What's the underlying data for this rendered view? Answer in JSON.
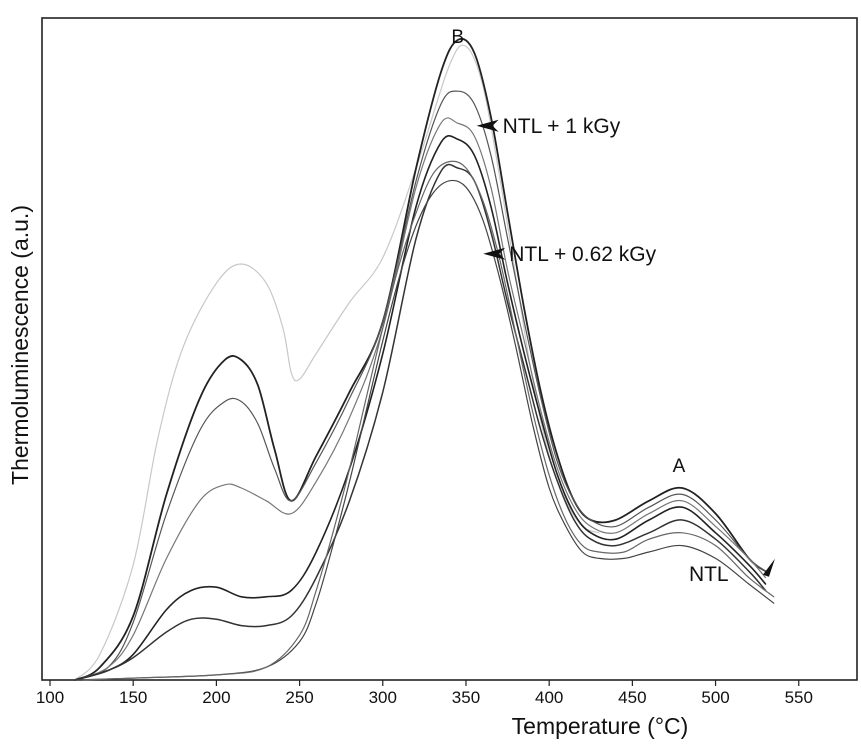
{
  "chart_data": {
    "type": "line",
    "title": "",
    "xlabel": "Temperature  (°C)",
    "ylabel": "Thermoluminescence (a.u.)",
    "xlim": [
      100,
      585
    ],
    "ylim": [
      0,
      100
    ],
    "xticks": [
      100,
      150,
      200,
      250,
      300,
      350,
      400,
      450,
      500,
      550
    ],
    "grid": false,
    "legend": "none",
    "annotations": [
      {
        "text": "B",
        "x": 345,
        "y": 99.5,
        "kind": "peak-label"
      },
      {
        "text": "A",
        "x": 478,
        "y": 32.5,
        "kind": "peak-label"
      },
      {
        "text": "NTL + 1 kGy",
        "x": 372,
        "y": 85.5,
        "arrow_to": [
          369,
          87
        ]
      },
      {
        "text": "NTL + 0.62 kGy",
        "x": 376,
        "y": 65.5,
        "arrow_to": [
          371,
          66.5
        ]
      },
      {
        "text": "NTL",
        "x": 484,
        "y": 15.5,
        "arrow_to": [
          482,
          17.5
        ]
      }
    ],
    "series": [
      {
        "stroke": "#c8c8c8",
        "width": 1.2,
        "x": [
          115,
          130,
          150,
          165,
          180,
          200,
          215,
          230,
          240,
          245,
          250,
          260,
          280,
          300,
          320,
          340,
          350,
          360,
          370,
          380,
          390,
          400,
          410,
          420,
          430
        ],
        "y": [
          0,
          4,
          18,
          38,
          52,
          62,
          65,
          62,
          55,
          48,
          47,
          51,
          59,
          66,
          80,
          96,
          99,
          93,
          79,
          63,
          47,
          35,
          28,
          24,
          23
        ]
      },
      {
        "stroke": "#222222",
        "width": 1.8,
        "x": [
          115,
          130,
          150,
          170,
          190,
          205,
          215,
          225,
          235,
          245,
          260,
          280,
          300,
          320,
          335,
          345,
          355,
          365,
          375,
          385,
          395,
          405,
          415,
          425,
          440,
          460,
          480,
          500,
          520,
          530
        ],
        "y": [
          0,
          2,
          10,
          29,
          44,
          50,
          50,
          46,
          36,
          28,
          35,
          45,
          56,
          80,
          95,
          100,
          98,
          88,
          73,
          58,
          45,
          35,
          28,
          25,
          25,
          28,
          30,
          26,
          19,
          17
        ]
      },
      {
        "stroke": "#555555",
        "width": 1.2,
        "x": [
          115,
          135,
          150,
          170,
          190,
          205,
          215,
          225,
          235,
          245,
          260,
          280,
          300,
          320,
          335,
          345,
          355,
          365,
          375,
          385,
          395,
          405,
          415,
          425,
          440,
          460,
          480,
          500,
          520,
          530
        ],
        "y": [
          0,
          2,
          9,
          26,
          39,
          43.5,
          43.5,
          40,
          33,
          28,
          34,
          44,
          56,
          78,
          90,
          92,
          90,
          82,
          69,
          56,
          44,
          34,
          28,
          25,
          24,
          27,
          29,
          25,
          19,
          17
        ]
      },
      {
        "stroke": "#777777",
        "width": 1.2,
        "x": [
          115,
          135,
          150,
          170,
          190,
          205,
          215,
          230,
          245,
          260,
          280,
          300,
          320,
          335,
          345,
          355,
          365,
          375,
          385,
          395,
          405,
          415,
          425,
          440,
          460,
          480,
          500,
          520,
          530
        ],
        "y": [
          0,
          2,
          7,
          19,
          28,
          30.5,
          30,
          28,
          26,
          31,
          41,
          55,
          77,
          87,
          87,
          85,
          77,
          64,
          53,
          42,
          33,
          27,
          24,
          23,
          26,
          28,
          24,
          19,
          16
        ]
      },
      {
        "stroke": "#222222",
        "width": 1.6,
        "x": [
          115,
          135,
          150,
          170,
          185,
          200,
          215,
          230,
          245,
          260,
          280,
          300,
          320,
          335,
          345,
          355,
          365,
          375,
          385,
          395,
          405,
          415,
          425,
          440,
          460,
          480,
          500,
          520,
          530
        ],
        "y": [
          0,
          1.5,
          4,
          11,
          14,
          14.5,
          13,
          13,
          14,
          20,
          33,
          51,
          74,
          84,
          84.5,
          82,
          74,
          62,
          51,
          41,
          32,
          26,
          23,
          22,
          25,
          27,
          23,
          18,
          15
        ]
      },
      {
        "stroke": "#333333",
        "width": 1.5,
        "x": [
          115,
          135,
          150,
          170,
          185,
          200,
          215,
          230,
          245,
          260,
          280,
          300,
          320,
          335,
          345,
          355,
          365,
          375,
          385,
          395,
          405,
          415,
          425,
          440,
          460,
          480,
          500,
          520,
          530
        ],
        "y": [
          0,
          1.5,
          3.5,
          7.5,
          9.5,
          9.5,
          8.5,
          8.5,
          10,
          16,
          28,
          45,
          69,
          79.5,
          80,
          78,
          70,
          59,
          49,
          39,
          31,
          25,
          22,
          21,
          23,
          25,
          22,
          17,
          14
        ]
      },
      {
        "stroke": "#444444",
        "width": 1.2,
        "x": [
          115,
          150,
          200,
          230,
          250,
          260,
          270,
          280,
          290,
          300,
          310,
          320,
          330,
          340,
          350,
          360,
          370,
          380,
          390,
          400,
          410,
          420,
          430,
          445,
          460,
          480,
          500,
          520,
          535
        ],
        "y": [
          0,
          0.3,
          0.8,
          2,
          6,
          12,
          21,
          31,
          42,
          53,
          63,
          71,
          76,
          78,
          77,
          72,
          63,
          52,
          40,
          30,
          24,
          20,
          19,
          19,
          20,
          21,
          19,
          15,
          12
        ]
      },
      {
        "stroke": "#666666",
        "width": 1.2,
        "x": [
          120,
          150,
          200,
          230,
          250,
          260,
          270,
          280,
          290,
          300,
          310,
          320,
          330,
          340,
          350,
          360,
          370,
          380,
          390,
          400,
          410,
          420,
          430,
          445,
          460,
          480,
          500,
          520,
          535
        ],
        "y": [
          0,
          0.3,
          0.8,
          2,
          7,
          14,
          23,
          33,
          44,
          55,
          65,
          73,
          79,
          81,
          80,
          75,
          66,
          54,
          42,
          32,
          25,
          21,
          20,
          20,
          22,
          23,
          21,
          16,
          13
        ]
      }
    ]
  }
}
